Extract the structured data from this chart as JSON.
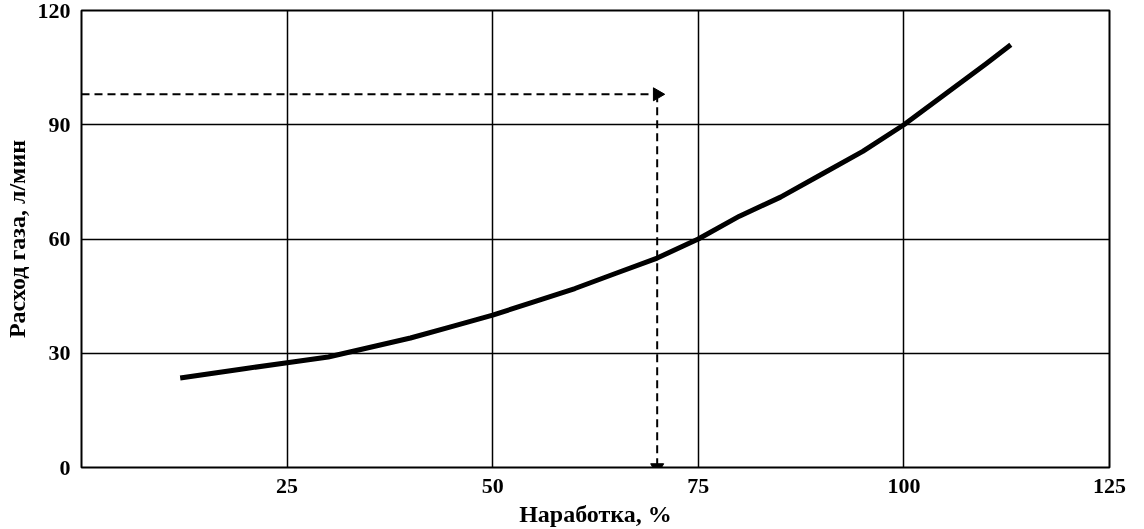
{
  "chart_data": {
    "type": "line",
    "xlabel": "Наработка, %",
    "ylabel": "Расход газа, л/мин",
    "xlim": [
      0,
      125
    ],
    "ylim": [
      0,
      120
    ],
    "xticks": [
      25,
      50,
      75,
      100,
      125
    ],
    "yticks": [
      0,
      30,
      60,
      90,
      120
    ],
    "grid": true,
    "series": [
      {
        "color": "#000000",
        "x": [
          12,
          20,
          25,
          30,
          35,
          40,
          45,
          50,
          55,
          60,
          65,
          70,
          75,
          80,
          85,
          90,
          95,
          100,
          105,
          110,
          113
        ],
        "values": [
          23.5,
          26,
          27.5,
          29,
          31.5,
          34,
          37,
          40,
          43.5,
          47,
          51,
          55,
          60,
          66,
          71,
          77,
          83,
          90,
          98,
          106,
          111
        ]
      },
      {
        "color": "#000000",
        "line_style": "dashed",
        "x": [
          0,
          70
        ],
        "values": [
          98,
          98
        ]
      },
      {
        "color": "#000000",
        "line_style": "dashed",
        "x": [
          70,
          70
        ],
        "values": [
          98,
          0
        ]
      }
    ]
  }
}
